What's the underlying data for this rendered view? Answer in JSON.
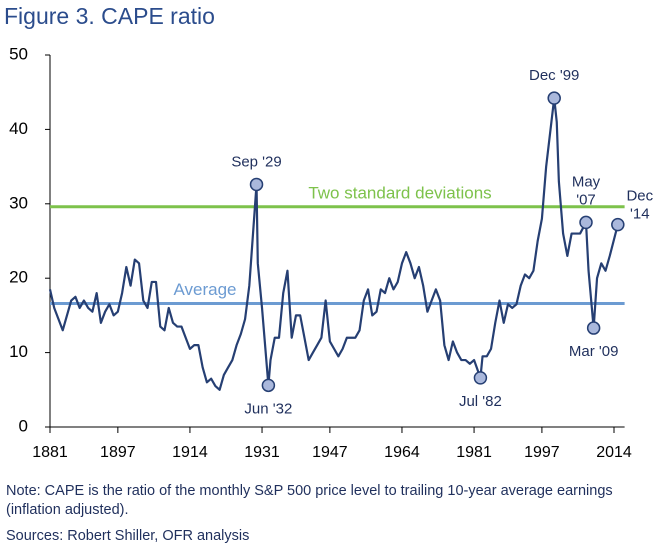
{
  "chart_data": {
    "type": "line",
    "title": "Figure 3. CAPE ratio",
    "note": "Note: CAPE is the ratio of the monthly S&P 500 price level to trailing 10-year average earnings (inflation adjusted).",
    "source": "Sources: Robert Shiller, OFR analysis",
    "xlim": [
      1881,
      2016.5
    ],
    "xticks": [
      1881,
      1897,
      1914,
      1931,
      1947,
      1964,
      1981,
      1997,
      2014
    ],
    "ylim": [
      0,
      50
    ],
    "yticks": [
      0,
      10,
      20,
      30,
      40,
      50
    ],
    "grid": false,
    "series": [
      {
        "name": "CAPE ratio",
        "color": "#263f73",
        "x": [
          1881,
          1882,
          1883,
          1884,
          1885,
          1886,
          1887,
          1888,
          1889,
          1890,
          1891,
          1892,
          1893,
          1894,
          1895,
          1896,
          1897,
          1898,
          1899,
          1900,
          1901,
          1902,
          1903,
          1904,
          1905,
          1906,
          1907,
          1908,
          1909,
          1910,
          1911,
          1912,
          1913,
          1914,
          1915,
          1916,
          1917,
          1918,
          1919,
          1920,
          1921,
          1922,
          1923,
          1924,
          1925,
          1926,
          1927,
          1928,
          1929.7,
          1930,
          1931,
          1932.5,
          1933,
          1934,
          1935,
          1936,
          1937,
          1938,
          1939,
          1940,
          1941,
          1942,
          1943,
          1944,
          1945,
          1946,
          1947,
          1948,
          1949,
          1950,
          1951,
          1952,
          1953,
          1954,
          1955,
          1956,
          1957,
          1958,
          1959,
          1960,
          1961,
          1962,
          1963,
          1964,
          1965,
          1966,
          1967,
          1968,
          1969,
          1970,
          1971,
          1972,
          1973,
          1974,
          1975,
          1976,
          1977,
          1978,
          1979,
          1980,
          1981,
          1982.5,
          1983,
          1984,
          1985,
          1986,
          1987,
          1988,
          1989,
          1990,
          1991,
          1992,
          1993,
          1994,
          1995,
          1996,
          1997,
          1998,
          1999.9,
          2000.5,
          2001,
          2002,
          2003,
          2004,
          2005,
          2006,
          2007.4,
          2008,
          2009.2,
          2010,
          2011,
          2012,
          2013,
          2014.9
        ],
        "values": [
          18.5,
          16,
          14.5,
          13,
          15,
          17,
          17.5,
          16,
          17,
          16,
          15.5,
          18,
          14,
          15.5,
          16.5,
          15,
          15.5,
          18,
          21.5,
          19,
          22.5,
          22,
          17,
          16,
          19.5,
          19.5,
          13.5,
          13,
          16,
          14,
          13.5,
          13.5,
          12,
          10.5,
          11,
          11,
          8,
          6,
          6.5,
          5.5,
          5,
          7,
          8,
          9,
          11,
          12.5,
          14.5,
          19,
          32.6,
          22,
          16,
          5.6,
          9,
          12,
          12,
          18,
          21,
          12,
          15,
          15,
          12,
          9,
          10,
          11,
          12,
          17,
          11.5,
          10.5,
          9.5,
          10.5,
          12,
          12,
          12,
          13,
          17,
          18.5,
          15,
          15.5,
          18.5,
          18,
          20,
          18.5,
          19.5,
          22,
          23.5,
          22,
          20,
          21.5,
          19,
          15.5,
          17,
          18.5,
          17,
          11,
          9,
          11.5,
          10,
          9,
          9,
          8.5,
          9,
          6.6,
          9.5,
          9.5,
          10.5,
          14,
          17,
          14,
          16.5,
          16,
          16.5,
          19,
          20.5,
          20,
          21,
          25,
          28,
          35,
          44.2,
          41,
          33,
          26,
          23,
          26,
          26,
          26,
          27.5,
          21,
          13.3,
          20,
          22,
          21,
          23,
          27.2
        ]
      }
    ],
    "reference_lines": [
      {
        "label": "Two standard deviations",
        "value": 29.6,
        "color": "#7dc24b"
      },
      {
        "label": "Average",
        "value": 16.6,
        "color": "#6c9bd2"
      }
    ],
    "annotations": [
      {
        "label": [
          "Sep '29"
        ],
        "x": 1929.7,
        "y": 32.6
      },
      {
        "label": [
          "Jun '32"
        ],
        "x": 1932.5,
        "y": 5.6
      },
      {
        "label": [
          "Jul '82"
        ],
        "x": 1982.5,
        "y": 6.6
      },
      {
        "label": [
          "Dec '99"
        ],
        "x": 1999.9,
        "y": 44.2
      },
      {
        "label": [
          "May",
          "'07"
        ],
        "x": 2007.4,
        "y": 27.5
      },
      {
        "label": [
          "Mar '09"
        ],
        "x": 2009.2,
        "y": 13.3
      },
      {
        "label": [
          "Dec",
          "'14"
        ],
        "x": 2014.9,
        "y": 27.2
      }
    ]
  }
}
